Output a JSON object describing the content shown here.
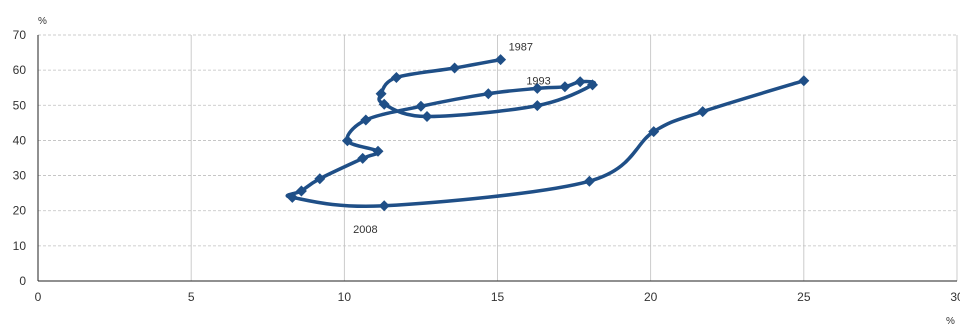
{
  "chart_data": {
    "type": "scatter",
    "title": "",
    "xlabel": "",
    "ylabel": "",
    "x_unit": "%",
    "y_unit": "%",
    "xlim": [
      0,
      30
    ],
    "ylim": [
      0,
      70
    ],
    "x_ticks": [
      "0",
      "5",
      "10",
      "15",
      "20",
      "25",
      "30"
    ],
    "y_ticks": [
      "0",
      "10",
      "20",
      "30",
      "40",
      "50",
      "60",
      "70"
    ],
    "grid": {
      "x": "vertical solid",
      "y": "horizontal dashed"
    },
    "legend": "none",
    "colors": {
      "series": "#1f4f87",
      "grid": "#bfbfbf",
      "axis": "#222222"
    },
    "series": [
      {
        "points": [
          {
            "x": 15.1,
            "y": 63
          },
          {
            "x": 13.6,
            "y": 60.6
          },
          {
            "x": 11.7,
            "y": 57.9
          },
          {
            "x": 11.2,
            "y": 53.3
          },
          {
            "x": 11.3,
            "y": 50.3
          },
          {
            "x": 12.7,
            "y": 46.8
          },
          {
            "x": 16.3,
            "y": 49.9
          },
          {
            "x": 18.1,
            "y": 55.8
          },
          {
            "x": 17.7,
            "y": 56.7
          },
          {
            "x": 17.2,
            "y": 55.3
          },
          {
            "x": 16.3,
            "y": 54.8
          },
          {
            "x": 14.7,
            "y": 53.3
          },
          {
            "x": 12.5,
            "y": 49.7
          },
          {
            "x": 10.7,
            "y": 45.8
          },
          {
            "x": 10.1,
            "y": 39.9
          },
          {
            "x": 11.1,
            "y": 36.9
          },
          {
            "x": 10.6,
            "y": 34.9
          },
          {
            "x": 9.2,
            "y": 29.1
          },
          {
            "x": 8.6,
            "y": 25.6
          },
          {
            "x": 8.3,
            "y": 23.8
          },
          {
            "x": 11.3,
            "y": 21.4
          },
          {
            "x": 18.0,
            "y": 28.4
          },
          {
            "x": 20.1,
            "y": 42.5
          },
          {
            "x": 21.7,
            "y": 48.2
          },
          {
            "x": 25.0,
            "y": 57.0
          }
        ]
      }
    ],
    "annotations": [
      {
        "text": "1987",
        "x": 15.1,
        "y": 63
      },
      {
        "text": "1993",
        "x": 16.3,
        "y": 54.8
      },
      {
        "text": "2008",
        "x": 11.3,
        "y": 21.4
      }
    ]
  }
}
